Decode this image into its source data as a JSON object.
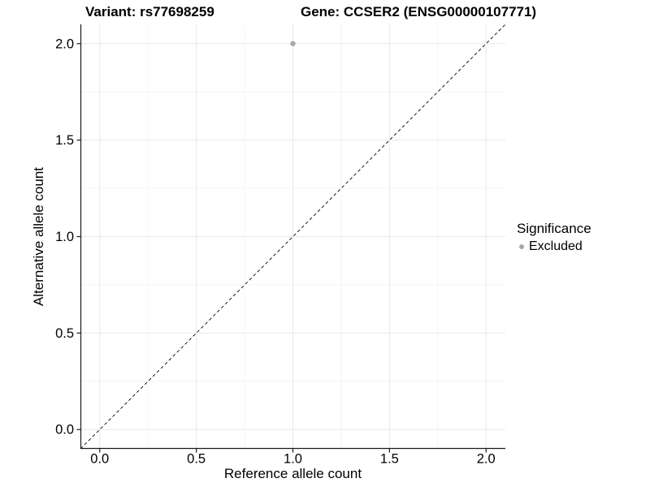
{
  "title": {
    "variant": "Variant: rs77698259",
    "gene": "Gene: CCSER2 (ENSG00000107771)"
  },
  "axes": {
    "x_label": "Reference allele count",
    "y_label": "Alternative allele count",
    "x_tick_labels": [
      "0.0",
      "0.5",
      "1.0",
      "1.5",
      "2.0"
    ],
    "y_tick_labels": [
      "0.0",
      "0.5",
      "1.0",
      "1.5",
      "2.0"
    ]
  },
  "legend": {
    "title": "Significance",
    "items": [
      {
        "label": "Excluded",
        "color": "#a8a8a8"
      }
    ]
  },
  "colors": {
    "background": "#ffffff",
    "grid_major": "#e8e8e8",
    "grid_minor": "#f4f4f4",
    "axis_line": "#1a1a1a",
    "tick_mark": "#1a1a1a",
    "tick_text": "#000000",
    "reference_line": "#1a1a1a",
    "point": "#a8a8a8"
  },
  "chart_data": {
    "type": "scatter",
    "title": "Variant: rs77698259    Gene: CCSER2 (ENSG00000107771)",
    "xlabel": "Reference allele count",
    "ylabel": "Alternative allele count",
    "xlim": [
      -0.1,
      2.1
    ],
    "ylim": [
      -0.1,
      2.1
    ],
    "x_tick_values": [
      0.0,
      0.5,
      1.0,
      1.5,
      2.0
    ],
    "y_tick_values": [
      0.0,
      0.5,
      1.0,
      1.5,
      2.0
    ],
    "x_minor_values": [
      0.25,
      0.75,
      1.25,
      1.75
    ],
    "y_minor_values": [
      0.25,
      0.75,
      1.25,
      1.75
    ],
    "grid": true,
    "legend_position": "right",
    "series": [
      {
        "name": "Excluded",
        "color": "#a8a8a8",
        "points": [
          {
            "x": 1.0,
            "y": 2.0
          }
        ]
      }
    ],
    "reference_line": {
      "type": "abline",
      "slope": 1,
      "intercept": 0,
      "style": "dashed",
      "color": "#1a1a1a"
    }
  }
}
